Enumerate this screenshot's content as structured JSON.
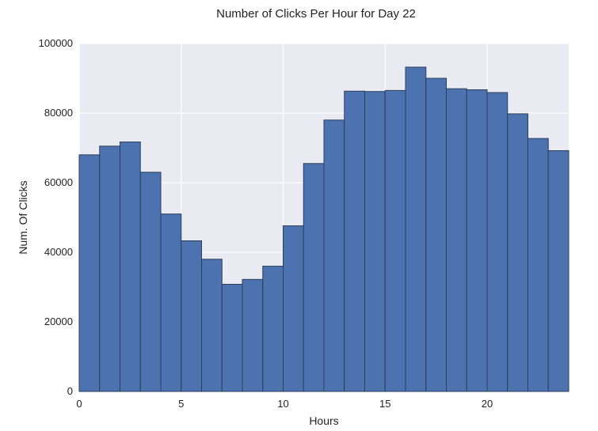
{
  "chart_data": {
    "type": "bar",
    "title": "Number of Clicks Per Hour for Day 22",
    "xlabel": "Hours",
    "ylabel": "Num. Of Clicks",
    "bin_edges": [
      0,
      1,
      2,
      3,
      4,
      5,
      6,
      7,
      8,
      9,
      10,
      11,
      12,
      13,
      14,
      15,
      16,
      17,
      18,
      19,
      20,
      21,
      22,
      23,
      24
    ],
    "values": [
      68000,
      70500,
      71700,
      63000,
      51000,
      43300,
      38000,
      30800,
      32200,
      36000,
      47600,
      65500,
      78000,
      86300,
      86200,
      86500,
      93200,
      90000,
      87000,
      86700,
      85900,
      79800,
      72700,
      69200
    ],
    "xlim": [
      0,
      24
    ],
    "ylim": [
      0,
      100000
    ],
    "xticks": [
      0,
      5,
      10,
      15,
      20
    ],
    "xtick_labels": [
      "0",
      "5",
      "10",
      "15",
      "20"
    ],
    "yticks": [
      0,
      20000,
      40000,
      60000,
      80000,
      100000
    ],
    "ytick_labels": [
      "0",
      "20000",
      "40000",
      "60000",
      "80000",
      "100000"
    ],
    "grid": true,
    "colors": {
      "bar_fill": "#4c72b0",
      "bar_edge": "#2b3f5c",
      "plot_background": "#eaeaf2",
      "grid": "#ffffff",
      "text": "#222222"
    }
  }
}
